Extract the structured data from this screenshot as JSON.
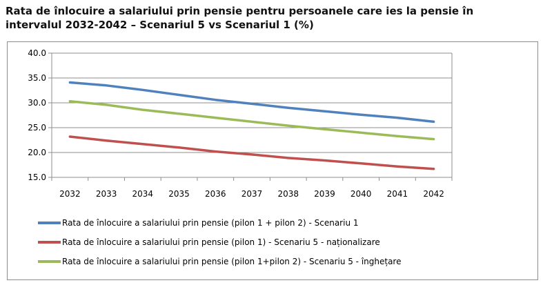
{
  "title_lines": [
    "Rata de înlocuire a salariului prin pensie pentru persoanele care ies la pensie în",
    "intervalul 2032-2042 – Scenariul 5 vs Scenariul 1 (%)"
  ],
  "chart_data": {
    "type": "line",
    "title": "Rata de înlocuire a salariului prin pensie pentru persoanele care ies la pensie în intervalul 2032-2042 – Scenariul 5 vs Scenariul 1 (%)",
    "categories": [
      "2032",
      "2033",
      "2034",
      "2035",
      "2036",
      "2037",
      "2038",
      "2039",
      "2040",
      "2041",
      "2042"
    ],
    "ylim": [
      15,
      40
    ],
    "yticks": [
      "15.0",
      "20.0",
      "25.0",
      "30.0",
      "35.0",
      "40.0"
    ],
    "grid": true,
    "legend_position": "bottom",
    "series": [
      {
        "name": "Rata de înlocuire a salariului prin pensie (pilon 1 + pilon 2) - Scenariu 1",
        "color": "#4f81bd",
        "values": [
          34.1,
          33.5,
          32.6,
          31.6,
          30.6,
          29.8,
          29.0,
          28.3,
          27.6,
          27.0,
          26.2
        ]
      },
      {
        "name": "Rata de înlocuire a salariului prin pensie (pilon 1) - Scenariu 5 - naționalizare",
        "color": "#c0504d",
        "values": [
          23.2,
          22.4,
          21.7,
          21.0,
          20.2,
          19.6,
          18.9,
          18.4,
          17.8,
          17.2,
          16.7
        ]
      },
      {
        "name": "Rata de înlocuire a salariului prin pensie (pilon 1+pilon 2) - Scenariu 5 - înghețare",
        "color": "#9bbb59",
        "values": [
          30.3,
          29.6,
          28.6,
          27.8,
          27.0,
          26.2,
          25.4,
          24.7,
          24.0,
          23.3,
          22.7
        ]
      }
    ]
  }
}
